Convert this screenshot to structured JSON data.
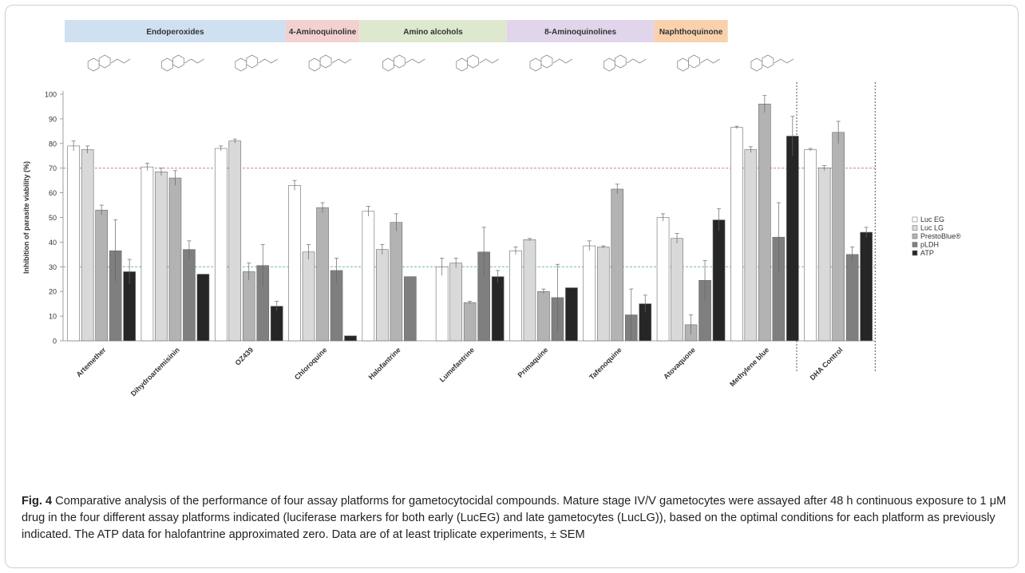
{
  "figure": {
    "label": "Fig. 4",
    "caption": "Comparative analysis of the performance of four assay platforms for gametocytocidal compounds. Mature stage IV/V gametocytes were assayed after 48 h continuous exposure to 1 μM drug in the four different assay platforms indicated (luciferase markers for both early (LucEG) and late gametocytes (LucLG)), based on the optimal conditions for each platform as previously indicated. The ATP data for halofantrine approximated zero. Data are of at least triplicate experiments, ± SEM"
  },
  "chart_data": {
    "type": "bar",
    "title": "",
    "xlabel": "",
    "ylabel": "Inhibition of parasite viability (%)",
    "ylim": [
      0,
      100
    ],
    "yticks": [
      0,
      10,
      20,
      30,
      40,
      50,
      60,
      70,
      80,
      90,
      100
    ],
    "grid": false,
    "legend_position": "right",
    "categories": [
      "Artemether",
      "Dihydroartemisinin",
      "OZ439",
      "Chloroquine",
      "Halofantrine",
      "Lumefantrine",
      "Primaquine",
      "Tafenoquine",
      "Atovaquone",
      "Methylene blue",
      "DHA Control"
    ],
    "series": [
      {
        "name": "Luc EG",
        "color": "#ffffff",
        "values": [
          79,
          70.5,
          78,
          63,
          52.5,
          30,
          36.5,
          38.5,
          50,
          86.5,
          77.5
        ],
        "errors": [
          2,
          1.5,
          1,
          2,
          2,
          3.5,
          1.5,
          2,
          1.5,
          0.5,
          0.5
        ]
      },
      {
        "name": "Luc LG",
        "color": "#d9d9d9",
        "values": [
          77.5,
          68.5,
          81,
          36,
          37,
          31.5,
          41,
          38,
          41.5,
          77.5,
          70
        ],
        "errors": [
          1.5,
          1.5,
          0.8,
          3,
          2,
          2,
          0.5,
          0.5,
          2,
          1.2,
          1
        ]
      },
      {
        "name": "PrestoBlue®",
        "color": "#b3b3b3",
        "values": [
          53,
          66,
          28,
          54,
          48,
          15.5,
          20,
          61.5,
          6.5,
          96,
          84.5
        ],
        "errors": [
          2,
          3,
          3.5,
          2,
          3.5,
          0.5,
          1,
          2,
          4,
          3.5,
          4.5
        ]
      },
      {
        "name": "pLDH",
        "color": "#7f7f7f",
        "values": [
          36.5,
          37,
          30.5,
          28.5,
          26,
          36,
          17.5,
          10.5,
          24.5,
          42,
          35
        ],
        "errors": [
          12.5,
          3.5,
          8.5,
          5,
          0,
          10,
          13.5,
          10.5,
          8,
          14,
          3
        ]
      },
      {
        "name": "ATP",
        "color": "#262626",
        "values": [
          28,
          27,
          14,
          2,
          0,
          26,
          21.5,
          15,
          49,
          83,
          44
        ],
        "errors": [
          5,
          0,
          2,
          0,
          0,
          2.5,
          0,
          3.5,
          4.5,
          8,
          2
        ]
      }
    ],
    "reference_lines": [
      {
        "y": 70,
        "color": "#d98c8c"
      },
      {
        "y": 30,
        "color": "#7fc4a4"
      }
    ],
    "compound_classes": [
      {
        "label": "Endoperoxides",
        "color": "#cfe0f1",
        "start": 0,
        "end": 2
      },
      {
        "label": "4-Aminoquinoline",
        "color": "#f3d1d1",
        "start": 3,
        "end": 3
      },
      {
        "label": "Amino alcohols",
        "color": "#dde8cf",
        "start": 4,
        "end": 5
      },
      {
        "label": "8-Aminoquinolines",
        "color": "#e0d5ea",
        "start": 6,
        "end": 7
      },
      {
        "label": "Naphthoquinone",
        "color": "#f9d2ad",
        "start": 8,
        "end": 8
      }
    ]
  }
}
